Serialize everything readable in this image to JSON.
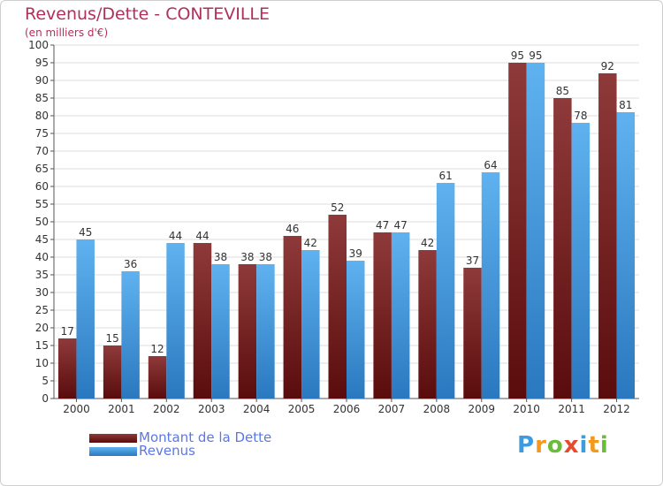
{
  "header": {
    "title": "Revenus/Dette - CONTEVILLE",
    "subtitle": "(en milliers d'€)"
  },
  "chart_data": {
    "type": "bar",
    "categories": [
      "2000",
      "2001",
      "2002",
      "2003",
      "2004",
      "2005",
      "2006",
      "2007",
      "2008",
      "2009",
      "2010",
      "2011",
      "2012"
    ],
    "series": [
      {
        "name": "Montant de la Dette",
        "color": "#7a1c1c",
        "values": [
          17,
          15,
          12,
          44,
          38,
          46,
          52,
          47,
          42,
          37,
          95,
          85,
          92
        ]
      },
      {
        "name": "Revenus",
        "color": "#3d9be0",
        "values": [
          45,
          36,
          44,
          38,
          38,
          42,
          39,
          47,
          61,
          64,
          95,
          78,
          81
        ]
      }
    ],
    "ylim": [
      0,
      100
    ],
    "ytick_step": 5,
    "grid": true,
    "legend_position": "bottom-left"
  },
  "legend": {
    "items": [
      {
        "label": "Montant de la Dette",
        "color": "#7a1c1c"
      },
      {
        "label": "Revenus",
        "color": "#3d9be0"
      }
    ]
  },
  "branding": {
    "logo_letters": [
      {
        "ch": "P",
        "color": "#3d9be0"
      },
      {
        "ch": "r",
        "color": "#f39a1e"
      },
      {
        "ch": "o",
        "color": "#6dbb3a"
      },
      {
        "ch": "x",
        "color": "#e54b2c"
      },
      {
        "ch": "i",
        "color": "#3d9be0"
      },
      {
        "ch": "t",
        "color": "#f39a1e"
      },
      {
        "ch": "i",
        "color": "#6dbb3a"
      }
    ]
  }
}
